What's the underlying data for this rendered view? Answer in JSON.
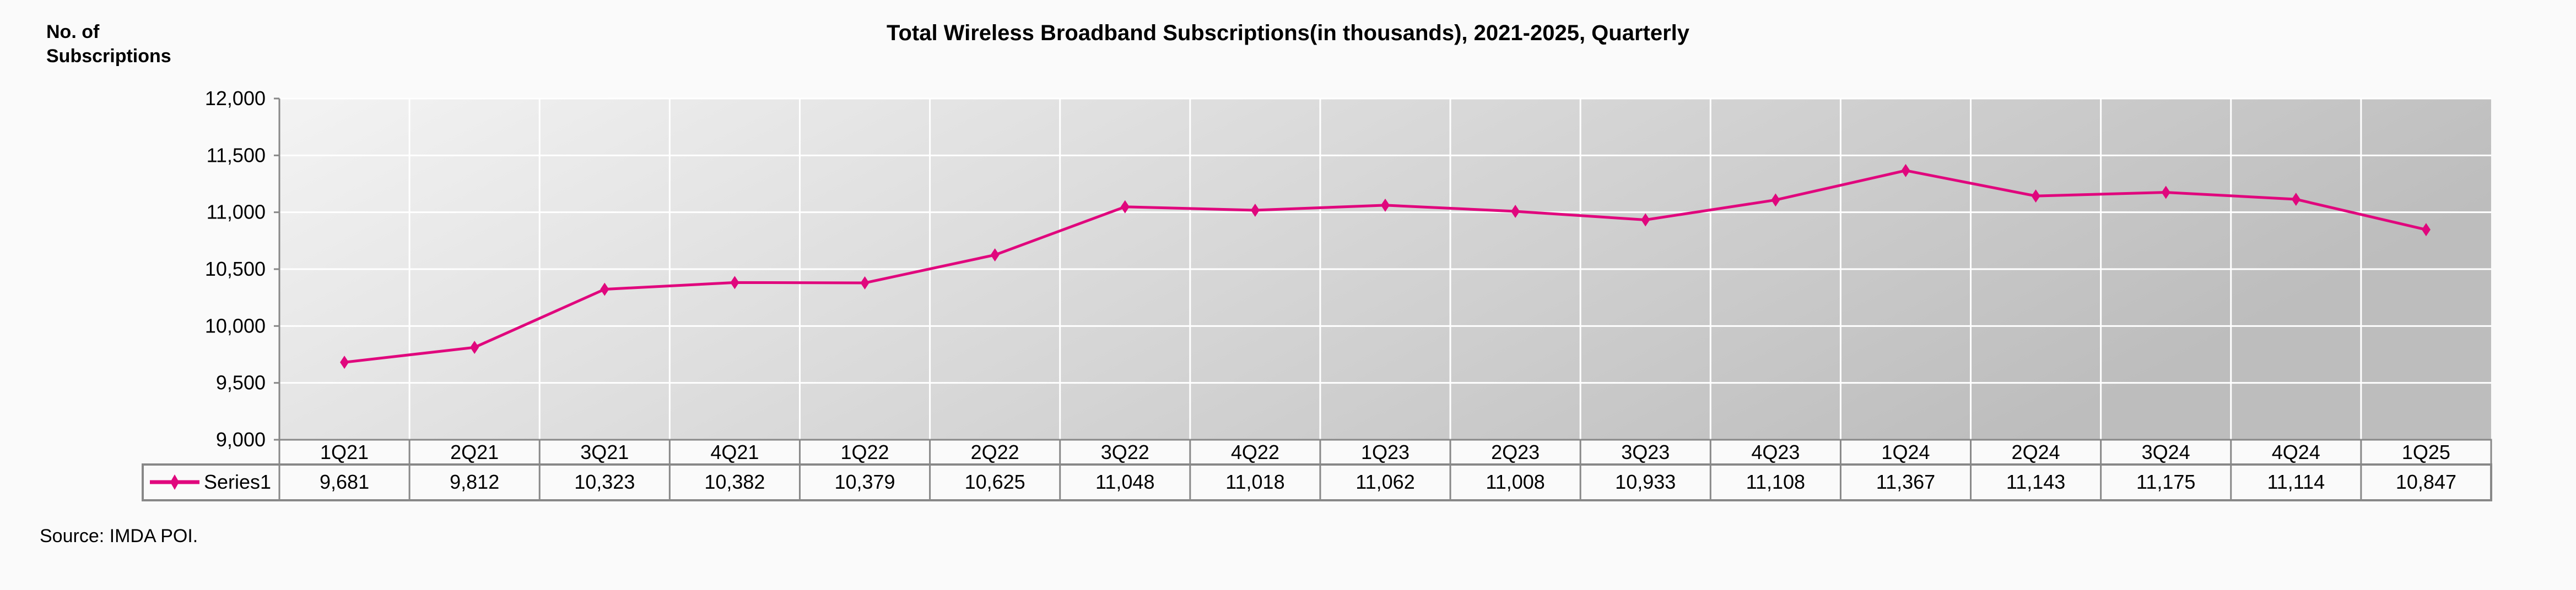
{
  "chart_data": {
    "type": "line",
    "title": "Total Wireless Broadband Subscriptions(in thousands), 2021-2025, Quarterly",
    "ylabel": "No. of Subscriptions",
    "xlabel": "",
    "categories": [
      "1Q21",
      "2Q21",
      "3Q21",
      "4Q21",
      "1Q22",
      "2Q22",
      "3Q22",
      "4Q22",
      "1Q23",
      "2Q23",
      "3Q23",
      "4Q23",
      "1Q24",
      "2Q24",
      "3Q24",
      "4Q24",
      "1Q25"
    ],
    "series": [
      {
        "name": "Series1",
        "color": "#e0077d",
        "values": [
          9681,
          9812,
          10323,
          10382,
          10379,
          10625,
          11048,
          11018,
          11062,
          11008,
          10933,
          11108,
          11367,
          11143,
          11175,
          11114,
          10847
        ],
        "labels": [
          "9,681",
          "9,812",
          "10,323",
          "10,382",
          "10,379",
          "10,625",
          "11,048",
          "11,018",
          "11,062",
          "11,008",
          "10,933",
          "11,108",
          "11,367",
          "11,143",
          "11,175",
          "11,114",
          "10,847"
        ]
      }
    ],
    "ylim": [
      9000,
      12000
    ],
    "yticks": [
      9000,
      9500,
      10000,
      10500,
      11000,
      11500,
      12000
    ],
    "ytick_labels": [
      "9,000",
      "9,500",
      "10,000",
      "10,500",
      "11,000",
      "11,500",
      "12,000"
    ],
    "grid": true,
    "legend": "data-table"
  },
  "source": "Source: IMDA POI."
}
